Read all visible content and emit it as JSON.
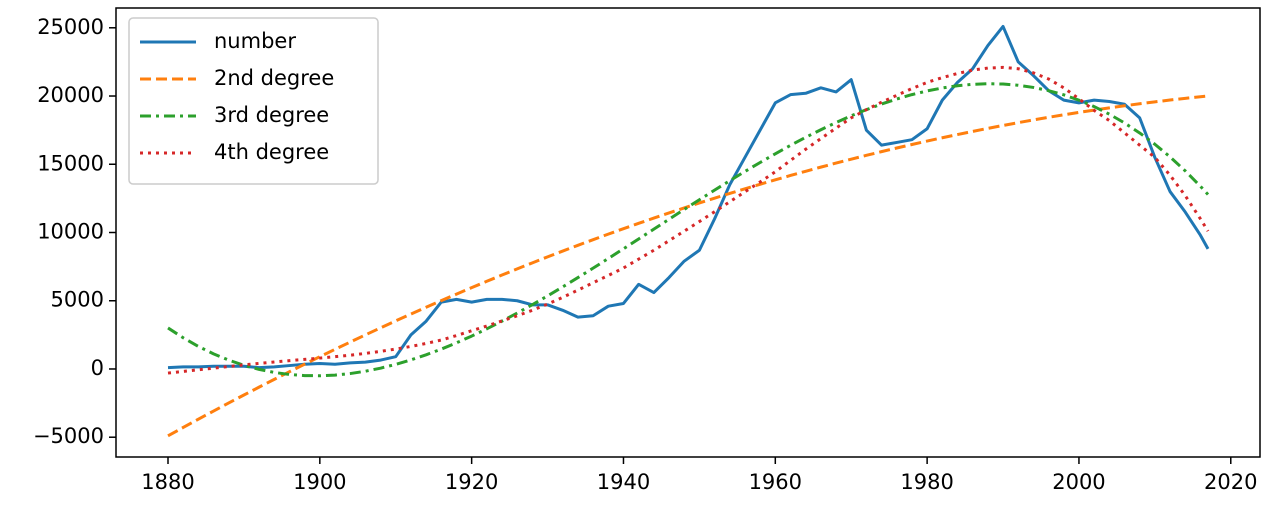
{
  "chart_data": {
    "type": "line",
    "x": [
      1880,
      1882,
      1884,
      1886,
      1888,
      1890,
      1892,
      1894,
      1896,
      1898,
      1900,
      1902,
      1904,
      1906,
      1908,
      1910,
      1912,
      1914,
      1916,
      1918,
      1920,
      1922,
      1924,
      1926,
      1928,
      1930,
      1932,
      1934,
      1936,
      1938,
      1940,
      1942,
      1944,
      1946,
      1948,
      1950,
      1952,
      1954,
      1956,
      1958,
      1960,
      1962,
      1964,
      1966,
      1968,
      1970,
      1972,
      1974,
      1976,
      1978,
      1980,
      1982,
      1984,
      1986,
      1988,
      1990,
      1992,
      1994,
      1996,
      1998,
      2000,
      2002,
      2004,
      2006,
      2008,
      2010,
      2012,
      2014,
      2016,
      2017
    ],
    "series": [
      {
        "name": "number",
        "color": "#1f77b4",
        "linestyle": "solid",
        "values": [
          100,
          150,
          150,
          200,
          200,
          200,
          100,
          150,
          250,
          350,
          400,
          350,
          450,
          500,
          650,
          900,
          2500,
          3500,
          4900,
          5100,
          4900,
          5100,
          5100,
          5000,
          4700,
          4700,
          4300,
          3800,
          3900,
          4600,
          4800,
          6200,
          5600,
          6700,
          7900,
          8700,
          11000,
          13500,
          15500,
          17500,
          19500,
          20100,
          20200,
          20600,
          20300,
          21200,
          17500,
          16400,
          16600,
          16800,
          17600,
          19700,
          21000,
          22000,
          23700,
          25100,
          22500,
          21500,
          20400,
          19700,
          19500,
          19700,
          19600,
          19400,
          18400,
          15500,
          13000,
          11500,
          9800,
          8800
        ]
      },
      {
        "name": "2nd degree",
        "color": "#ff7f0e",
        "linestyle": "dashed",
        "values": [
          -4900,
          -4287,
          -3681,
          -3082,
          -2491,
          -1908,
          -1331,
          -762,
          -201,
          353,
          900,
          1439,
          1971,
          2496,
          3013,
          3523,
          4025,
          4520,
          5007,
          5487,
          5960,
          6425,
          6883,
          7334,
          7777,
          8213,
          8641,
          9062,
          9475,
          9881,
          10280,
          10671,
          11055,
          11432,
          11801,
          12163,
          12517,
          12864,
          13203,
          13535,
          13860,
          14177,
          14487,
          14790,
          15085,
          15373,
          15653,
          15926,
          16191,
          16449,
          16700,
          16943,
          17179,
          17408,
          17629,
          17843,
          18049,
          18248,
          18439,
          18623,
          18800,
          18969,
          19131,
          19286,
          19433,
          19573,
          19705,
          19830,
          19947,
          20003
        ]
      },
      {
        "name": "3rd degree",
        "color": "#2ca02c",
        "linestyle": "dashdot",
        "values": [
          3007,
          2284,
          1653,
          1107,
          649,
          270,
          -30,
          -252,
          -404,
          -483,
          -497,
          -447,
          -335,
          -166,
          60,
          338,
          665,
          1039,
          1455,
          1915,
          2410,
          2941,
          3505,
          4096,
          4715,
          5355,
          6016,
          6696,
          7388,
          8094,
          8807,
          9525,
          10248,
          10969,
          11688,
          12400,
          13104,
          13795,
          14472,
          15131,
          15769,
          16384,
          16972,
          17530,
          18058,
          18549,
          19001,
          19414,
          19781,
          20103,
          20374,
          20591,
          20755,
          20857,
          20901,
          20878,
          20788,
          20630,
          20395,
          20087,
          19697,
          19227,
          18672,
          18028,
          17294,
          16466,
          15541,
          14517,
          13389,
          12787
        ]
      },
      {
        "name": "4th degree",
        "color": "#d62728",
        "linestyle": "dotted",
        "values": [
          -300,
          -180,
          -60,
          60,
          180,
          300,
          410,
          510,
          610,
          700,
          800,
          900,
          1010,
          1140,
          1290,
          1460,
          1650,
          1870,
          2120,
          2450,
          2800,
          3150,
          3520,
          3900,
          4300,
          4750,
          5250,
          5780,
          6320,
          6850,
          7400,
          8050,
          8700,
          9400,
          10100,
          10800,
          11520,
          12250,
          12980,
          13700,
          14450,
          15280,
          16100,
          16880,
          17650,
          18400,
          19000,
          19550,
          20050,
          20550,
          21000,
          21350,
          21650,
          21900,
          22050,
          22100,
          22000,
          21700,
          21250,
          20600,
          19800,
          18950,
          18200,
          17300,
          16400,
          15500,
          14200,
          12700,
          11000,
          10100
        ]
      }
    ],
    "xlim": [
      1873.15,
      2023.85
    ],
    "ylim": [
      -6450,
      26450
    ],
    "xticks": [
      1880,
      1900,
      1920,
      1940,
      1960,
      1980,
      2000,
      2020
    ],
    "yticks": [
      {
        "value": -5000,
        "label": "−5000"
      },
      0,
      5000,
      10000,
      15000,
      20000,
      25000
    ],
    "grid": false,
    "legend": "upper left"
  }
}
